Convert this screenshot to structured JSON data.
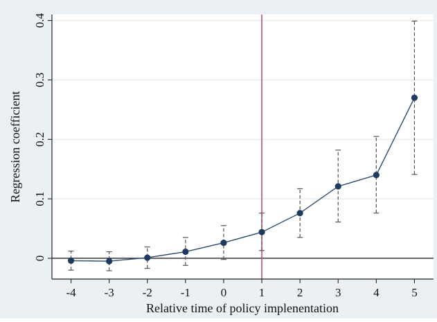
{
  "chart_data": {
    "type": "line",
    "title": "",
    "xlabel": "Relative time of policy implenentation",
    "ylabel": "Regression coefficient",
    "xlim": [
      -4.5,
      5.5
    ],
    "ylim": [
      -0.035,
      0.41
    ],
    "xticks": [
      -4,
      -3,
      -2,
      -1,
      0,
      1,
      2,
      3,
      4,
      5
    ],
    "yticks": [
      0,
      0.1,
      0.2,
      0.3,
      0.4
    ],
    "ytick_labels": [
      "0",
      "0.1",
      "0.2",
      "0.3",
      "0.4"
    ],
    "grid": "horizontal",
    "reference_lines": {
      "y": 0,
      "x": 1
    },
    "colors": {
      "series": "#2b4a6b",
      "marker": "#1f3a5f",
      "vline": "#c0506a",
      "ci": "#555555",
      "background": "#eaf0f3",
      "plot_area": "#ffffff"
    },
    "series": [
      {
        "x": [
          -4,
          -3,
          -2,
          -1,
          0,
          1,
          2,
          3,
          4,
          5
        ],
        "y": [
          -0.004,
          -0.005,
          0.001,
          0.011,
          0.026,
          0.044,
          0.076,
          0.121,
          0.14,
          0.27
        ],
        "ci_lower": [
          -0.02,
          -0.021,
          -0.017,
          -0.012,
          -0.002,
          0.013,
          0.035,
          0.061,
          0.076,
          0.141
        ],
        "ci_upper": [
          0.012,
          0.011,
          0.019,
          0.035,
          0.055,
          0.076,
          0.117,
          0.182,
          0.205,
          0.399
        ]
      }
    ]
  }
}
